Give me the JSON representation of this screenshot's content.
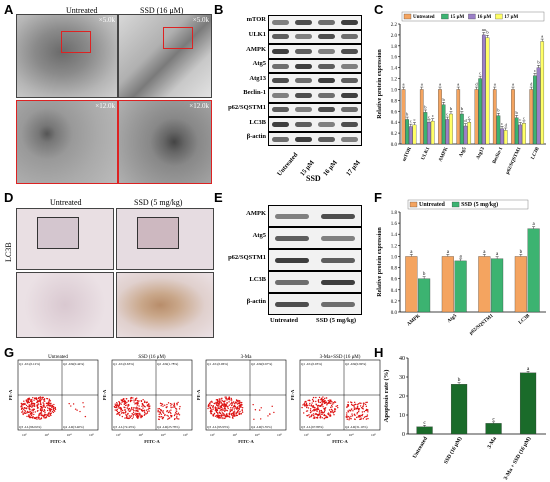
{
  "panels": {
    "A": {
      "letter": "A",
      "col1": "Untreated",
      "col2": "SSD (16 μM)",
      "mag_top": "×5.0k",
      "mag_bottom": "×12.0k"
    },
    "B": {
      "letter": "B",
      "proteins": [
        "mTOR",
        "ULK1",
        "AMPK",
        "Atg5",
        "Atg13",
        "Beclin-1",
        "p62/SQSTM1",
        "LC3B",
        "β-actin"
      ],
      "lanes": [
        "Untreated",
        "15 μM",
        "16 μM",
        "17 μM"
      ],
      "group": "SSD"
    },
    "C": {
      "letter": "C"
    },
    "D": {
      "letter": "D",
      "col1": "Untreated",
      "col2": "SSD (5 mg/kg)",
      "side": "LC3B"
    },
    "E": {
      "letter": "E",
      "proteins": [
        "AMPK",
        "Atg5",
        "p62/SQSTM1",
        "LC3B",
        "β-actin"
      ],
      "lanes": [
        "Untreated",
        "SSD (5 mg/kg)"
      ]
    },
    "F": {
      "letter": "F"
    },
    "G": {
      "letter": "G",
      "plots": [
        {
          "title": "Untreated",
          "q1": "Q1 -UL(0.12%)",
          "q2": "Q2 -UR(0.44%)",
          "q3": "Q3 -LL(96.04%)",
          "q4": "Q4 -LR(3.40%)"
        },
        {
          "title": "SSD (16 μM)",
          "q1": "Q1 -UL(0.63%)",
          "q2": "Q2 -UR(1.78%)",
          "q3": "Q3 -LL(72.43%)",
          "q4": "Q4 -LR(25.78%)"
        },
        {
          "title": "3-Ma",
          "q1": "Q1 -UL(0.06%)",
          "q2": "Q2 -UR(0.67%)",
          "q3": "Q3 -LL(93.93%)",
          "q4": "Q4 -LR(5.35%)"
        },
        {
          "title": "3-Ma+SSD (16 μM)",
          "q1": "Q1 -UL(0.03%)",
          "q2": "Q2 -UR(0.99%)",
          "q3": "Q3 -LL(67.89%)",
          "q4": "Q4 -LR(31.10%)"
        }
      ],
      "xlabel": "FITC-A",
      "ylabel": "PE-A",
      "ticks": [
        "10²",
        "10³",
        "10⁴",
        "10⁵"
      ]
    },
    "H": {
      "letter": "H"
    }
  },
  "chart_data": [
    {
      "id": "C",
      "type": "bar",
      "ylabel": "Relative protein expression",
      "ylim": [
        0,
        2.2
      ],
      "yticks": [
        "0.0",
        "0.2",
        "0.4",
        "0.6",
        "0.8",
        "1.0",
        "1.2",
        "1.4",
        "1.6",
        "1.8",
        "2.0",
        "2.2"
      ],
      "categories": [
        "mTOR",
        "ULK1",
        "AMPK",
        "Atg5",
        "Atg13",
        "Beclin-1",
        "p62/SQSTM1",
        "LC3B"
      ],
      "series": [
        {
          "name": "Untreated",
          "color": "#f4a460",
          "values": [
            1.0,
            1.0,
            1.0,
            1.0,
            1.0,
            1.0,
            1.0,
            1.0
          ]
        },
        {
          "name": "15 μM",
          "color": "#3cb371",
          "values": [
            0.45,
            0.58,
            0.72,
            0.55,
            1.2,
            0.52,
            0.48,
            1.25
          ]
        },
        {
          "name": "16 μM",
          "color": "#9b7fc7",
          "values": [
            0.32,
            0.4,
            0.45,
            0.33,
            2.0,
            0.28,
            0.35,
            1.4
          ]
        },
        {
          "name": "17 μM",
          "color": "#ffff66",
          "values": [
            0.35,
            0.42,
            0.55,
            0.4,
            1.95,
            0.25,
            0.38,
            1.88
          ]
        }
      ],
      "labels": [
        [
          "a",
          "b",
          "c",
          "c"
        ],
        [
          "a",
          "b",
          "c",
          "c"
        ],
        [
          "a",
          "b",
          "c",
          "b"
        ],
        [
          "a",
          "b",
          "d",
          "c"
        ],
        [
          "d",
          "c",
          "aa",
          "b"
        ],
        [
          "a",
          "b",
          "c",
          "d"
        ],
        [
          "a",
          "b",
          "c",
          "c"
        ],
        [
          "d",
          "c",
          "b",
          "a"
        ]
      ]
    },
    {
      "id": "F",
      "type": "bar",
      "ylabel": "Relative protein expression",
      "ylim": [
        0,
        1.8
      ],
      "yticks": [
        "0.0",
        "0.2",
        "0.4",
        "0.6",
        "0.8",
        "1.0",
        "1.2",
        "1.4",
        "1.6",
        "1.8"
      ],
      "categories": [
        "AMPK",
        "Atg5",
        "p62/SQSTM1",
        "LC3B"
      ],
      "series": [
        {
          "name": "Untreated",
          "color": "#f4a460",
          "values": [
            1.0,
            1.0,
            1.0,
            1.0
          ]
        },
        {
          "name": "SSD (5 mg/kg)",
          "color": "#3cb371",
          "values": [
            0.6,
            0.92,
            0.96,
            1.5
          ]
        }
      ],
      "labels": [
        [
          "a",
          "b"
        ],
        [
          "a",
          "a"
        ],
        [
          "a",
          "a"
        ],
        [
          "b",
          "a"
        ]
      ]
    },
    {
      "id": "H",
      "type": "bar",
      "ylabel": "Apoptosis rate (%)",
      "ylim": [
        0,
        40
      ],
      "yticks": [
        "0",
        "10",
        "20",
        "30",
        "40"
      ],
      "categories": [
        "Untreated",
        "SSD (16 μM)",
        "3-Ma",
        "3-Ma + SSD (16 μM)"
      ],
      "series": [
        {
          "name": "",
          "color": "#1a6b2a",
          "values": [
            3.8,
            26.2,
            5.6,
            32.2
          ]
        }
      ],
      "labels": [
        [
          "c"
        ],
        [
          "b"
        ],
        [
          "c"
        ],
        [
          "a"
        ]
      ]
    }
  ]
}
